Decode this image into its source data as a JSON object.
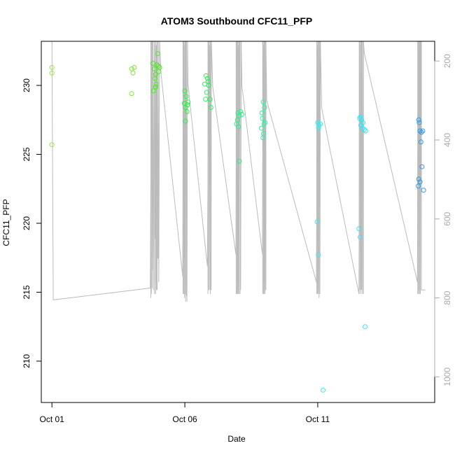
{
  "chart_data": {
    "type": "scatter",
    "title": "ATOM3 Southbound CFC11_PFP",
    "xlabel": "Date",
    "ylabel": "CFC11_PFP",
    "x_unit": "days since Oct 01",
    "xlim": [
      -0.4,
      14.4
    ],
    "ylim": [
      207.0,
      233.2
    ],
    "x_ticks": [
      {
        "value": 0,
        "label": "Oct 01"
      },
      {
        "value": 5,
        "label": "Oct 06"
      },
      {
        "value": 10,
        "label": "Oct 11"
      }
    ],
    "y_ticks": [
      210,
      215,
      220,
      225,
      230
    ],
    "right_axis": {
      "color": "#aaaaaa",
      "ylim": [
        1065,
        150
      ],
      "ticks": [
        200,
        400,
        600,
        800,
        1000
      ]
    },
    "grid": false,
    "legend": "none",
    "points": [
      {
        "x": 0.0,
        "y": 231.3,
        "color": "#9be633"
      },
      {
        "x": 0.0,
        "y": 230.9,
        "color": "#9be633"
      },
      {
        "x": 0.0,
        "y": 225.7,
        "color": "#9be633"
      },
      {
        "x": 3.0,
        "y": 231.2,
        "color": "#7fea2a"
      },
      {
        "x": 3.05,
        "y": 230.9,
        "color": "#7fea2a"
      },
      {
        "x": 3.1,
        "y": 231.3,
        "color": "#7fea2a"
      },
      {
        "x": 3.0,
        "y": 229.4,
        "color": "#7fea2a"
      },
      {
        "x": 3.8,
        "y": 231.6,
        "color": "#45f01c"
      },
      {
        "x": 3.85,
        "y": 231.2,
        "color": "#45f01c"
      },
      {
        "x": 3.9,
        "y": 230.8,
        "color": "#45f01c"
      },
      {
        "x": 3.95,
        "y": 231.5,
        "color": "#45f01c"
      },
      {
        "x": 3.88,
        "y": 230.5,
        "color": "#45f01c"
      },
      {
        "x": 3.92,
        "y": 230.1,
        "color": "#45f01c"
      },
      {
        "x": 3.82,
        "y": 229.6,
        "color": "#45f01c"
      },
      {
        "x": 4.0,
        "y": 231.4,
        "color": "#45f01c"
      },
      {
        "x": 4.02,
        "y": 231.0,
        "color": "#45f01c"
      },
      {
        "x": 3.98,
        "y": 232.3,
        "color": "#45f01c"
      },
      {
        "x": 4.05,
        "y": 231.3,
        "color": "#45f01c"
      },
      {
        "x": 3.9,
        "y": 229.9,
        "color": "#45f01c"
      },
      {
        "x": 5.0,
        "y": 229.6,
        "color": "#2cef45"
      },
      {
        "x": 5.05,
        "y": 229.2,
        "color": "#2cef45"
      },
      {
        "x": 4.98,
        "y": 228.7,
        "color": "#2cef45"
      },
      {
        "x": 5.1,
        "y": 228.6,
        "color": "#2cef45"
      },
      {
        "x": 5.03,
        "y": 228.4,
        "color": "#2cef45"
      },
      {
        "x": 5.08,
        "y": 228.1,
        "color": "#2cef45"
      },
      {
        "x": 5.02,
        "y": 227.4,
        "color": "#2cef45"
      },
      {
        "x": 5.12,
        "y": 228.8,
        "color": "#2cef45"
      },
      {
        "x": 5.8,
        "y": 230.7,
        "color": "#2ef05a"
      },
      {
        "x": 5.85,
        "y": 230.5,
        "color": "#2ef05a"
      },
      {
        "x": 5.75,
        "y": 230.1,
        "color": "#2ef05a"
      },
      {
        "x": 5.9,
        "y": 230.0,
        "color": "#2ef05a"
      },
      {
        "x": 5.82,
        "y": 229.5,
        "color": "#2ef05a"
      },
      {
        "x": 5.95,
        "y": 229.0,
        "color": "#2ef05a"
      },
      {
        "x": 5.78,
        "y": 229.0,
        "color": "#2ef05a"
      },
      {
        "x": 5.98,
        "y": 228.4,
        "color": "#2ef05a"
      },
      {
        "x": 5.88,
        "y": 230.3,
        "color": "#2ef05a"
      },
      {
        "x": 7.0,
        "y": 228.0,
        "color": "#30ef86"
      },
      {
        "x": 7.05,
        "y": 227.8,
        "color": "#30ef86"
      },
      {
        "x": 6.98,
        "y": 227.5,
        "color": "#30ef86"
      },
      {
        "x": 7.1,
        "y": 228.1,
        "color": "#30ef86"
      },
      {
        "x": 6.95,
        "y": 227.2,
        "color": "#30ef86"
      },
      {
        "x": 7.02,
        "y": 227.0,
        "color": "#30ef86"
      },
      {
        "x": 7.15,
        "y": 227.9,
        "color": "#30ef86"
      },
      {
        "x": 7.05,
        "y": 224.5,
        "color": "#30ef86"
      },
      {
        "x": 7.9,
        "y": 228.0,
        "color": "#33efa0"
      },
      {
        "x": 7.95,
        "y": 228.8,
        "color": "#33efa0"
      },
      {
        "x": 8.0,
        "y": 228.4,
        "color": "#33efa0"
      },
      {
        "x": 7.92,
        "y": 227.6,
        "color": "#33efa0"
      },
      {
        "x": 7.98,
        "y": 227.2,
        "color": "#33efa0"
      },
      {
        "x": 7.88,
        "y": 226.9,
        "color": "#33efa0"
      },
      {
        "x": 8.02,
        "y": 227.3,
        "color": "#33efa0"
      },
      {
        "x": 7.96,
        "y": 226.5,
        "color": "#33efa0"
      },
      {
        "x": 7.94,
        "y": 226.2,
        "color": "#33efa0"
      },
      {
        "x": 10.0,
        "y": 227.3,
        "color": "#33eef0"
      },
      {
        "x": 10.05,
        "y": 227.1,
        "color": "#33eef0"
      },
      {
        "x": 10.1,
        "y": 227.2,
        "color": "#33eef0"
      },
      {
        "x": 10.03,
        "y": 226.9,
        "color": "#33eef0"
      },
      {
        "x": 9.98,
        "y": 220.1,
        "color": "#33eef0"
      },
      {
        "x": 10.02,
        "y": 217.7,
        "color": "#33eef0"
      },
      {
        "x": 10.2,
        "y": 207.9,
        "color": "#33eef0"
      },
      {
        "x": 11.6,
        "y": 227.7,
        "color": "#33e6f2"
      },
      {
        "x": 11.65,
        "y": 227.5,
        "color": "#33e6f2"
      },
      {
        "x": 11.7,
        "y": 227.3,
        "color": "#33e6f2"
      },
      {
        "x": 11.62,
        "y": 227.1,
        "color": "#33e6f2"
      },
      {
        "x": 11.68,
        "y": 226.9,
        "color": "#33e6f2"
      },
      {
        "x": 11.75,
        "y": 226.8,
        "color": "#33e6f2"
      },
      {
        "x": 11.8,
        "y": 226.7,
        "color": "#33e6f2"
      },
      {
        "x": 11.58,
        "y": 227.6,
        "color": "#33e6f2"
      },
      {
        "x": 11.55,
        "y": 219.6,
        "color": "#33e6f2"
      },
      {
        "x": 11.6,
        "y": 219.0,
        "color": "#33e6f2"
      },
      {
        "x": 11.78,
        "y": 212.5,
        "color": "#33e6f2"
      },
      {
        "x": 13.8,
        "y": 227.5,
        "color": "#3399e6"
      },
      {
        "x": 13.82,
        "y": 227.3,
        "color": "#3399e6"
      },
      {
        "x": 13.85,
        "y": 226.7,
        "color": "#3399e6"
      },
      {
        "x": 13.9,
        "y": 226.6,
        "color": "#3399e6"
      },
      {
        "x": 13.95,
        "y": 226.7,
        "color": "#3399e6"
      },
      {
        "x": 13.88,
        "y": 225.9,
        "color": "#3399e6"
      },
      {
        "x": 13.92,
        "y": 224.1,
        "color": "#3399e6"
      },
      {
        "x": 13.8,
        "y": 223.2,
        "color": "#3399e6"
      },
      {
        "x": 13.85,
        "y": 223.0,
        "color": "#3399e6"
      },
      {
        "x": 13.78,
        "y": 222.7,
        "color": "#3399e6"
      },
      {
        "x": 13.98,
        "y": 222.4,
        "color": "#3399e6"
      }
    ],
    "altitude_path": {
      "color": "#bbbbbb",
      "points": [
        [
          0.0,
          150
        ],
        [
          0.0,
          150
        ],
        [
          0.05,
          805
        ],
        [
          3.7,
          775
        ],
        [
          3.75,
          150
        ],
        [
          3.78,
          730
        ],
        [
          3.8,
          150
        ],
        [
          3.82,
          780
        ],
        [
          3.85,
          150
        ],
        [
          3.88,
          650
        ],
        [
          3.9,
          150
        ],
        [
          3.92,
          760
        ],
        [
          3.95,
          150
        ],
        [
          3.98,
          700
        ],
        [
          4.0,
          150
        ],
        [
          4.02,
          760
        ],
        [
          4.05,
          150
        ],
        [
          4.1,
          230
        ],
        [
          4.92,
          745
        ],
        [
          4.95,
          150
        ],
        [
          4.98,
          700
        ],
        [
          5.0,
          150
        ],
        [
          5.02,
          760
        ],
        [
          5.05,
          150
        ],
        [
          5.08,
          810
        ],
        [
          5.1,
          150
        ],
        [
          5.12,
          260
        ],
        [
          5.85,
          720
        ],
        [
          5.9,
          150
        ],
        [
          5.92,
          760
        ],
        [
          5.95,
          150
        ],
        [
          5.98,
          780
        ],
        [
          6.0,
          150
        ],
        [
          6.05,
          265
        ],
        [
          6.92,
          690
        ],
        [
          6.95,
          150
        ],
        [
          6.98,
          780
        ],
        [
          7.0,
          150
        ],
        [
          7.02,
          760
        ],
        [
          7.05,
          150
        ],
        [
          7.1,
          780
        ],
        [
          7.12,
          150
        ],
        [
          7.15,
          265
        ],
        [
          7.92,
          690
        ],
        [
          7.95,
          150
        ],
        [
          7.98,
          760
        ],
        [
          8.0,
          150
        ],
        [
          8.02,
          780
        ],
        [
          8.05,
          150
        ],
        [
          8.08,
          300
        ],
        [
          9.95,
          760
        ],
        [
          10.0,
          150
        ],
        [
          10.02,
          780
        ],
        [
          10.05,
          150
        ],
        [
          10.08,
          790
        ],
        [
          10.1,
          150
        ],
        [
          10.15,
          320
        ],
        [
          11.55,
          790
        ],
        [
          11.58,
          150
        ],
        [
          11.62,
          760
        ],
        [
          11.65,
          150
        ],
        [
          11.68,
          780
        ],
        [
          11.72,
          150
        ],
        [
          11.75,
          180
        ],
        [
          13.75,
          760
        ],
        [
          13.78,
          150
        ],
        [
          13.8,
          790
        ],
        [
          13.82,
          150
        ],
        [
          13.85,
          780
        ],
        [
          13.88,
          150
        ],
        [
          13.9,
          780
        ],
        [
          14.05,
          780
        ]
      ],
      "curtains": [
        [
          3.72,
          150,
          800
        ],
        [
          3.74,
          230,
          790
        ],
        [
          3.77,
          150,
          775
        ],
        [
          3.86,
          160,
          790
        ],
        [
          3.9,
          150,
          790
        ],
        [
          3.93,
          160,
          780
        ],
        [
          3.96,
          150,
          780
        ],
        [
          4.0,
          150,
          700
        ],
        [
          4.93,
          150,
          790
        ],
        [
          4.96,
          150,
          790
        ],
        [
          4.99,
          160,
          800
        ],
        [
          5.01,
          150,
          790
        ],
        [
          5.03,
          150,
          810
        ],
        [
          5.06,
          150,
          795
        ],
        [
          5.87,
          150,
          790
        ],
        [
          5.9,
          150,
          780
        ],
        [
          5.92,
          160,
          780
        ],
        [
          5.96,
          150,
          790
        ],
        [
          5.99,
          150,
          780
        ],
        [
          6.93,
          150,
          790
        ],
        [
          6.96,
          150,
          790
        ],
        [
          6.99,
          150,
          790
        ],
        [
          7.02,
          160,
          790
        ],
        [
          7.04,
          150,
          790
        ],
        [
          7.08,
          150,
          790
        ],
        [
          7.93,
          150,
          790
        ],
        [
          7.96,
          160,
          790
        ],
        [
          7.99,
          150,
          790
        ],
        [
          8.02,
          150,
          790
        ],
        [
          8.05,
          150,
          780
        ],
        [
          9.96,
          150,
          790
        ],
        [
          9.99,
          160,
          790
        ],
        [
          10.02,
          150,
          790
        ],
        [
          10.05,
          150,
          800
        ],
        [
          10.08,
          150,
          790
        ],
        [
          11.56,
          150,
          790
        ],
        [
          11.59,
          160,
          780
        ],
        [
          11.62,
          150,
          790
        ],
        [
          11.65,
          150,
          780
        ],
        [
          11.68,
          150,
          790
        ],
        [
          11.72,
          150,
          790
        ],
        [
          13.76,
          150,
          790
        ],
        [
          13.79,
          150,
          790
        ],
        [
          13.81,
          160,
          780
        ],
        [
          13.84,
          150,
          790
        ],
        [
          13.86,
          150,
          790
        ],
        [
          13.9,
          150,
          780
        ]
      ]
    }
  }
}
